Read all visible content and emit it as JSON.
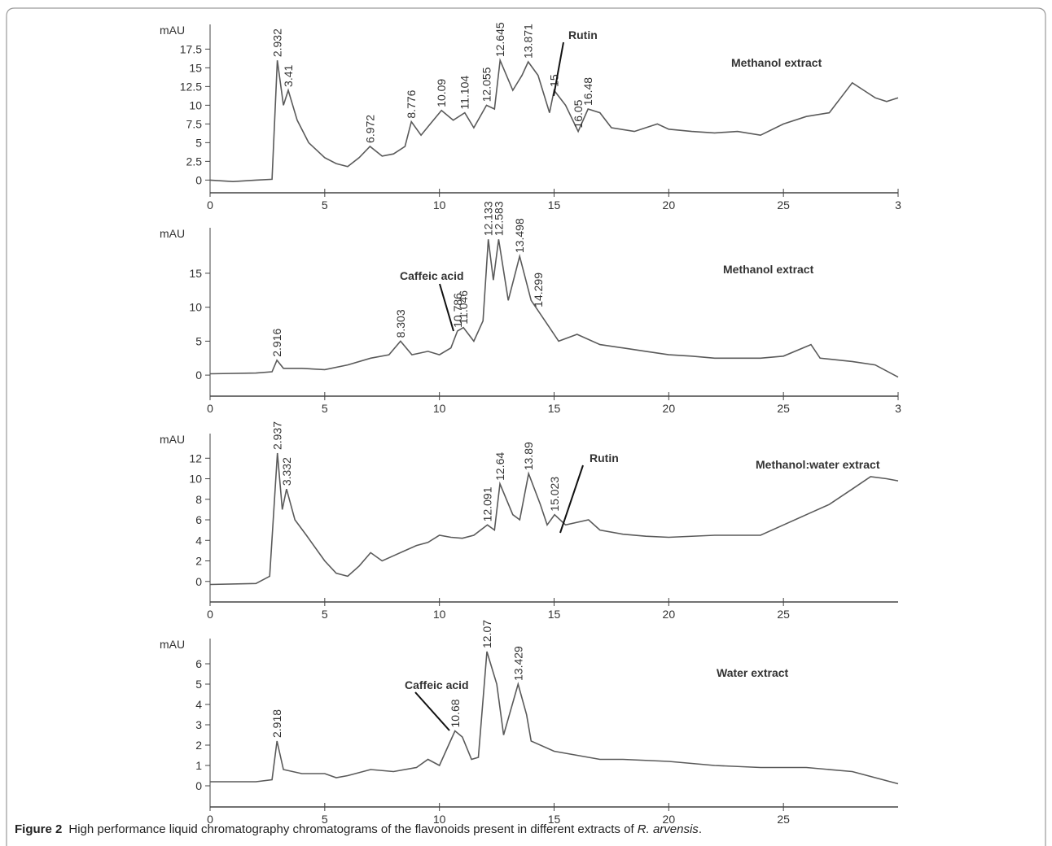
{
  "chart_data": [
    {
      "type": "line",
      "title": "Methanol extract",
      "ylabel": "mAU",
      "color": "#5a5a5a",
      "xlim": [
        0,
        30
      ],
      "ylim": [
        -1.7,
        20.8
      ],
      "xticks": [
        0,
        5,
        10,
        15,
        20,
        25,
        {
          "value": 30,
          "label": "3"
        }
      ],
      "yticks": [
        0,
        2.5,
        5,
        7.5,
        10,
        12.5,
        15,
        17.5
      ],
      "x": [
        0,
        1,
        2,
        2.7,
        2.932,
        3.2,
        3.41,
        3.8,
        4.3,
        5,
        5.5,
        6,
        6.5,
        6.972,
        7.5,
        8,
        8.5,
        8.776,
        9.2,
        9.6,
        10.09,
        10.6,
        11.104,
        11.5,
        12.055,
        12.4,
        12.645,
        13.2,
        13.6,
        13.871,
        14.3,
        14.8,
        15.0,
        15.5,
        16.05,
        16.48,
        17,
        17.5,
        18.5,
        19.5,
        20,
        21,
        22,
        23,
        24,
        25,
        26,
        27,
        27.5,
        28,
        28.5,
        29,
        29.5,
        30
      ],
      "values": [
        0,
        -0.2,
        0,
        0.1,
        16,
        10,
        12,
        8,
        5,
        3,
        2.2,
        1.8,
        3,
        4.5,
        3.2,
        3.5,
        4.5,
        7.8,
        6,
        7.5,
        9.3,
        8,
        9,
        7,
        10,
        9.5,
        16,
        12,
        14,
        15.8,
        14,
        9,
        12,
        10,
        6.5,
        9.5,
        9,
        7,
        6.5,
        7.5,
        6.8,
        6.5,
        6.3,
        6.5,
        6,
        7.5,
        8.5,
        9,
        11,
        13,
        12,
        11,
        10.5,
        11
      ],
      "peaks": [
        2.932,
        3.41,
        6.972,
        8.776,
        10.09,
        11.104,
        12.055,
        12.645,
        13.871,
        15.0,
        16.05,
        16.48
      ],
      "annotations": [
        "Rutin"
      ]
    },
    {
      "type": "line",
      "title": "Methanol extract",
      "ylabel": "mAU",
      "color": "#5a5a5a",
      "xlim": [
        0,
        30
      ],
      "ylim": [
        -3.1,
        21.7
      ],
      "xticks": [
        0,
        5,
        10,
        15,
        20,
        25,
        {
          "value": 30,
          "label": "3"
        }
      ],
      "yticks": [
        0,
        5,
        10,
        15
      ],
      "x": [
        0,
        2,
        2.7,
        2.916,
        3.2,
        4,
        5,
        6,
        7,
        7.8,
        8.303,
        8.8,
        9.5,
        10,
        10.5,
        10.786,
        11.046,
        11.5,
        11.9,
        12.133,
        12.35,
        12.583,
        13,
        13.498,
        14,
        14.299,
        14.8,
        15.2,
        16,
        17,
        18,
        19,
        20,
        21,
        22,
        23,
        24,
        25,
        26.2,
        26.6,
        28,
        29,
        30
      ],
      "values": [
        0.2,
        0.3,
        0.5,
        2.2,
        1,
        1,
        0.8,
        1.5,
        2.5,
        3,
        5,
        3,
        3.5,
        3,
        4,
        6.5,
        7,
        5,
        8,
        20,
        14,
        20,
        11,
        17.5,
        11,
        9.5,
        7,
        5,
        6,
        4.5,
        4,
        3.5,
        3,
        2.8,
        2.5,
        2.5,
        2.5,
        2.8,
        4.5,
        2.5,
        2,
        1.5,
        -0.3
      ],
      "peaks": [
        2.916,
        8.303,
        10.786,
        11.046,
        12.133,
        12.583,
        13.498,
        14.299
      ],
      "annotations": [
        "Caffeic acid"
      ]
    },
    {
      "type": "line",
      "title": "Methanol:water extract",
      "ylabel": "mAU",
      "color": "#5a5a5a",
      "xlim": [
        0,
        30
      ],
      "ylim": [
        -2.0,
        14.4
      ],
      "xticks": [
        0,
        5,
        10,
        15,
        20,
        25
      ],
      "yticks": [
        0,
        2,
        4,
        6,
        8,
        10,
        12
      ],
      "x": [
        0,
        2,
        2.6,
        2.937,
        3.15,
        3.332,
        3.7,
        4.2,
        5,
        5.5,
        6,
        6.5,
        7,
        7.5,
        8,
        8.5,
        9,
        9.5,
        10,
        10.5,
        11,
        11.5,
        12.091,
        12.4,
        12.64,
        13.2,
        13.5,
        13.89,
        14.4,
        14.7,
        15.023,
        15.5,
        16.5,
        17,
        18,
        19,
        20,
        22,
        24,
        25,
        26,
        27,
        28,
        28.8,
        29.5,
        30
      ],
      "values": [
        -0.3,
        -0.2,
        0.5,
        12.5,
        7,
        9,
        6,
        4.5,
        2,
        0.8,
        0.5,
        1.5,
        2.8,
        2,
        2.5,
        3,
        3.5,
        3.8,
        4.5,
        4.3,
        4.2,
        4.5,
        5.5,
        5,
        9.5,
        6.5,
        6,
        10.5,
        7.5,
        5.5,
        6.5,
        5.5,
        6,
        5,
        4.6,
        4.4,
        4.3,
        4.5,
        4.5,
        5.5,
        6.5,
        7.5,
        9,
        10.2,
        10,
        9.8
      ],
      "peaks": [
        2.937,
        3.332,
        12.091,
        12.64,
        13.89,
        15.023
      ],
      "annotations": [
        "Rutin"
      ]
    },
    {
      "type": "line",
      "title": "Water extract",
      "ylabel": "mAU",
      "color": "#5a5a5a",
      "xlim": [
        0,
        30
      ],
      "ylim": [
        -1.04,
        7.24
      ],
      "xticks": [
        0,
        5,
        10,
        15,
        20,
        25
      ],
      "yticks": [
        0,
        1,
        2,
        3,
        4,
        5,
        6
      ],
      "x": [
        0,
        2,
        2.7,
        2.918,
        3.2,
        4,
        5,
        5.5,
        6,
        7,
        8,
        9,
        9.5,
        10,
        10.4,
        10.68,
        11,
        11.4,
        11.7,
        12.07,
        12.5,
        12.8,
        13.429,
        13.8,
        14,
        15,
        16,
        17,
        18,
        20,
        22,
        24,
        26,
        28,
        29,
        30
      ],
      "values": [
        0.2,
        0.2,
        0.3,
        2.2,
        0.8,
        0.6,
        0.6,
        0.4,
        0.5,
        0.8,
        0.7,
        0.9,
        1.3,
        1,
        2,
        2.7,
        2.4,
        1.3,
        1.4,
        6.6,
        5,
        2.5,
        5,
        3.5,
        2.2,
        1.7,
        1.5,
        1.3,
        1.3,
        1.2,
        1,
        0.9,
        0.9,
        0.7,
        0.4,
        0.1
      ],
      "peaks": [
        2.918,
        10.68,
        12.07,
        13.429
      ],
      "annotations": [
        "Caffeic acid"
      ]
    }
  ],
  "caption": {
    "label": "Figure 2",
    "text": "High performance liquid chromatography chromatograms of the flavonoids present in different extracts of ",
    "species": "R. arvensis",
    "end": "."
  }
}
